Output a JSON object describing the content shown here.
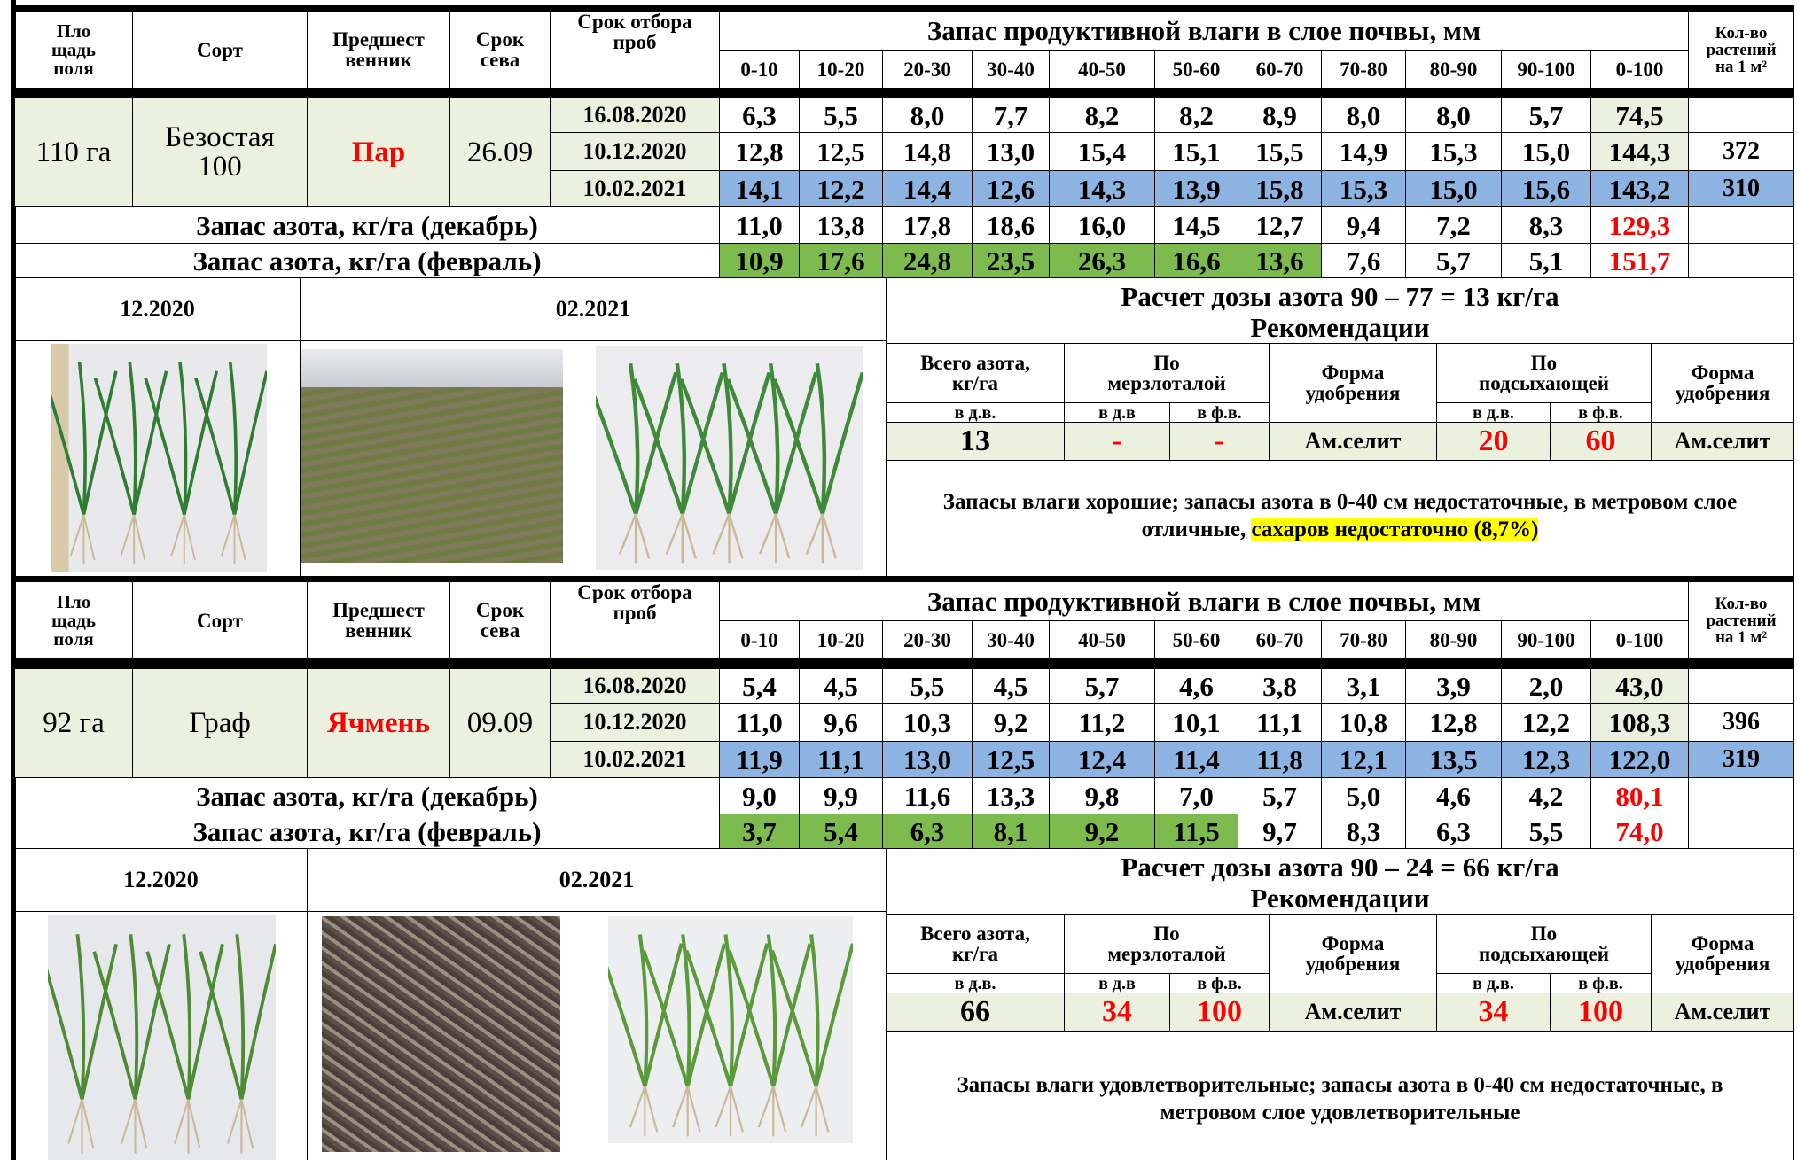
{
  "blocks": [
    {
      "header": {
        "area": "Пло\nщадь\nполя",
        "variety": "Сорт",
        "predecessor": "Предшест\nвенник",
        "sowing": "Срок\nсева",
        "sampling": "Срок отбора\nпроб",
        "moisture_title": "Запас продуктивной влаги  в слое почвы, мм",
        "layers": [
          "0-10",
          "10-20",
          "20-30",
          "30-40",
          "40-50",
          "50-60",
          "60-70",
          "70-80",
          "80-90",
          "90-100",
          "0-100"
        ],
        "plants": "Кол-во\nрастений\nна 1 м²"
      },
      "area": "110 га",
      "variety": "Безостая\n100",
      "predecessor": "Пар",
      "sowing": "26.09",
      "samples": [
        {
          "date": "16.08.2020",
          "values": [
            "6,3",
            "5,5",
            "8,0",
            "7,7",
            "8,2",
            "8,2",
            "8,9",
            "8,0",
            "8,0",
            "5,7",
            "74,5"
          ]
        },
        {
          "date": "10.12.2020",
          "values": [
            "12,8",
            "12,5",
            "14,8",
            "13,0",
            "15,4",
            "15,1",
            "15,5",
            "14,9",
            "15,3",
            "15,0",
            "144,3"
          ],
          "plants": "372"
        },
        {
          "date": "10.02.2021",
          "values": [
            "14,1",
            "12,2",
            "14,4",
            "12,6",
            "14,3",
            "13,9",
            "15,8",
            "15,3",
            "15,0",
            "15,6",
            "143,2"
          ],
          "plants": "310",
          "color": "#8db3e2"
        }
      ],
      "nitrogen": [
        {
          "label": "Запас азота, кг/га (декабрь)",
          "values": [
            "11,0",
            "13,8",
            "17,8",
            "18,6",
            "16,0",
            "14,5",
            "12,7",
            "9,4",
            "7,2",
            "8,3",
            "129,3"
          ]
        },
        {
          "label": "Запас азота, кг/га (февраль)",
          "values": [
            "10,9",
            "17,6",
            "24,8",
            "23,5",
            "26,3",
            "16,6",
            "13,6",
            "7,6",
            "5,7",
            "5,1",
            "151,7"
          ],
          "cell_colors": [
            "#7dbb4f",
            "#7dbb4f",
            "#7dbb4f",
            "#7dbb4f",
            "#7dbb4f",
            "#7dbb4f",
            "#7dbb4f",
            null,
            null,
            null,
            null
          ]
        }
      ],
      "photo_labels": [
        "12.2020",
        "02.2021"
      ],
      "calc": "Расчет дозы азота 90 – 77 = 13  кг/га",
      "rec_title": "Рекомендации",
      "rec_header": {
        "total": "Всего азота,\nкг/га",
        "frozen": "По\nмерзлоталой",
        "form": "Форма\nудобрения",
        "drying": "По\nподсыхающей",
        "form2": "Форма\nудобрения",
        "sub": [
          "в д.в.",
          "в д.в",
          "в ф.в.",
          "в д.в.",
          "в ф.в."
        ]
      },
      "rec_values": [
        "13",
        "-",
        "-",
        "Ам.селит",
        "20",
        "60",
        "Ам.селит"
      ],
      "conclusion": "Запасы влаги хорошие; запасы азота в 0-40 см недостаточные, в метровом слое отличные, ",
      "highlight": "сахаров недостаточно (8,7%)"
    },
    {
      "header": {
        "area": "Пло\nщадь\nполя",
        "variety": "Сорт",
        "predecessor": "Предшест\nвенник",
        "sowing": "Срок\nсева",
        "sampling": "Срок отбора\nпроб",
        "moisture_title": "Запас продуктивной влаги  в слое почвы, мм",
        "layers": [
          "0-10",
          "10-20",
          "20-30",
          "30-40",
          "40-50",
          "50-60",
          "60-70",
          "70-80",
          "80-90",
          "90-100",
          "0-100"
        ],
        "plants": "Кол-во\nрастений\nна 1 м²"
      },
      "area": "92 га",
      "variety": "Граф",
      "predecessor": "Ячмень",
      "sowing": "09.09",
      "samples": [
        {
          "date": "16.08.2020",
          "values": [
            "5,4",
            "4,5",
            "5,5",
            "4,5",
            "5,7",
            "4,6",
            "3,8",
            "3,1",
            "3,9",
            "2,0",
            "43,0"
          ]
        },
        {
          "date": "10.12.2020",
          "values": [
            "11,0",
            "9,6",
            "10,3",
            "9,2",
            "11,2",
            "10,1",
            "11,1",
            "10,8",
            "12,8",
            "12,2",
            "108,3"
          ],
          "plants": "396"
        },
        {
          "date": "10.02.2021",
          "values": [
            "11,9",
            "11,1",
            "13,0",
            "12,5",
            "12,4",
            "11,4",
            "11,8",
            "12,1",
            "13,5",
            "12,3",
            "122,0"
          ],
          "plants": "319",
          "color": "#8db3e2"
        }
      ],
      "nitrogen": [
        {
          "label": "Запас азота, кг/га (декабрь)",
          "values": [
            "9,0",
            "9,9",
            "11,6",
            "13,3",
            "9,8",
            "7,0",
            "5,7",
            "5,0",
            "4,6",
            "4,2",
            "80,1"
          ]
        },
        {
          "label": "Запас азота, кг/га (февраль)",
          "values": [
            "3,7",
            "5,4",
            "6,3",
            "8,1",
            "9,2",
            "11,5",
            "9,7",
            "8,3",
            "6,3",
            "5,5",
            "74,0"
          ],
          "cell_colors": [
            "#7dbb4f",
            "#7dbb4f",
            "#7dbb4f",
            "#7dbb4f",
            "#7dbb4f",
            "#7dbb4f",
            null,
            null,
            null,
            null,
            null
          ]
        }
      ],
      "photo_labels": [
        "12.2020",
        "02.2021"
      ],
      "calc": "Расчет дозы азота 90 – 24 = 66  кг/га",
      "rec_title": "Рекомендации",
      "rec_header": {
        "total": "Всего азота,\nкг/га",
        "frozen": "По\nмерзлоталой",
        "form": "Форма\nудобрения",
        "drying": "По\nподсыхающей",
        "form2": "Форма\nудобрения",
        "sub": [
          "в д.в.",
          "в д.в",
          "в ф.в.",
          "в д.в.",
          "в ф.в."
        ]
      },
      "rec_values": [
        "66",
        "34",
        "100",
        "Ам.селит",
        "34",
        "100",
        "Ам.селит"
      ],
      "conclusion": "Запасы влаги удовлетворительные; запасы азота в 0-40 см недостаточные, в метровом слое удовлетворительные"
    }
  ]
}
